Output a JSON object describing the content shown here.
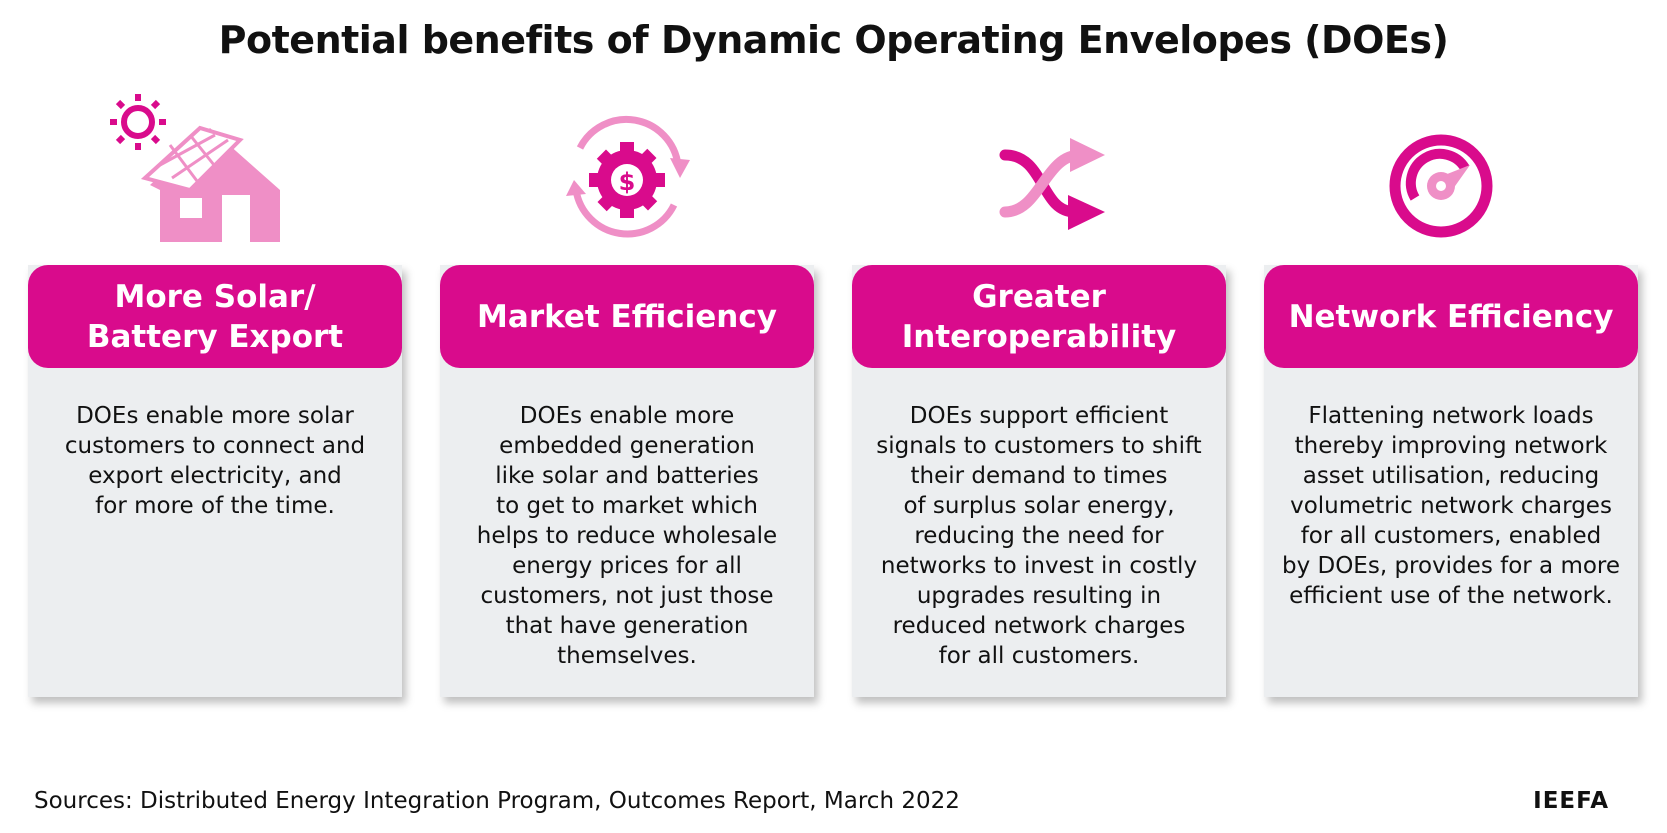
{
  "title": "Potential benefits of Dynamic  Operating Envelopes (DOEs)",
  "cards": [
    {
      "heading": [
        "More Solar/",
        "Battery Export"
      ],
      "body": [
        "DOEs enable more solar",
        "customers to connect and",
        "export electricity, and",
        "for more of the time."
      ]
    },
    {
      "heading": [
        "Market Efficiency"
      ],
      "body": [
        "DOEs enable more",
        "embedded generation",
        "like solar and batteries",
        "to get to market which",
        "helps to reduce wholesale",
        "energy prices for all",
        "customers, not just those",
        "that have generation",
        "themselves."
      ]
    },
    {
      "heading": [
        "Greater",
        "Interoperability"
      ],
      "body": [
        "DOEs support efficient",
        "signals to customers to shift",
        "their demand to times",
        "of surplus solar energy,",
        "reducing the need for",
        "networks to invest in costly",
        "upgrades resulting in",
        "reduced network charges",
        "for all customers."
      ]
    },
    {
      "heading": [
        "Network Efficiency"
      ],
      "body": [
        "Flattening network loads",
        "thereby improving network",
        "asset utilisation, reducing",
        "volumetric network charges",
        "for all customers, enabled",
        "by DOEs, provides for a more",
        "efficient use of the network."
      ]
    }
  ],
  "footer": {
    "source": "Sources: Distributed Energy Integration Program, Outcomes Report, March 2022",
    "brand": "IEEFA"
  }
}
